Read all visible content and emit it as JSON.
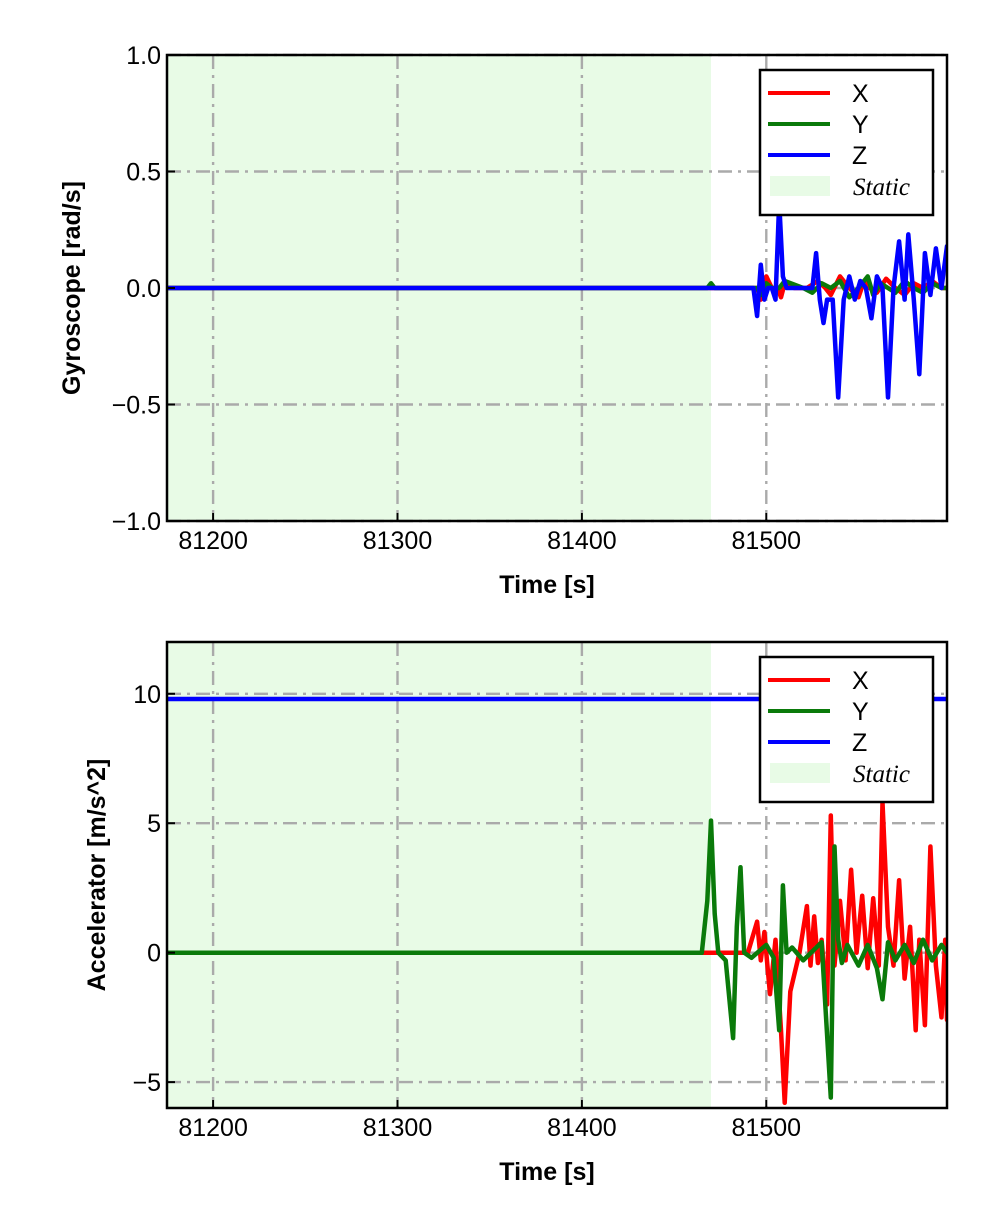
{
  "colors": {
    "x": "#ff0000",
    "y": "#0a7a0a",
    "z": "#0000ff",
    "static": "#e8fbe6",
    "grid": "#aaaaaa"
  },
  "chart_data": [
    {
      "type": "line",
      "xlabel": "Time [s]",
      "ylabel": "Gyroscope [rad/s]",
      "xlim": [
        81175,
        81598
      ],
      "ylim": [
        -1.0,
        1.0
      ],
      "xticks": [
        81200,
        81300,
        81400,
        81500
      ],
      "xtick_labels": [
        "81200",
        "81300",
        "81400",
        "81500"
      ],
      "yticks": [
        -1.0,
        -0.5,
        0.0,
        0.5,
        1.0
      ],
      "ytick_labels": [
        "−1.0",
        "−0.5",
        "0.0",
        "0.5",
        "1.0"
      ],
      "grid": true,
      "legend_position": "top-right",
      "static_region": {
        "label": "Static",
        "x_start": 81175,
        "x_end": 81470
      },
      "series": [
        {
          "name": "X",
          "color_key": "x",
          "x": [
            81175,
            81470,
            81495,
            81497,
            81500,
            81503,
            81506,
            81508,
            81510,
            81515,
            81522,
            81528,
            81532,
            81535,
            81540,
            81545,
            81550,
            81553,
            81556,
            81560,
            81565,
            81570,
            81575,
            81580,
            81585,
            81590,
            81595,
            81598
          ],
          "y": [
            0.0,
            0.0,
            0.0,
            -0.05,
            0.05,
            0.0,
            0.0,
            -0.04,
            0.02,
            0.0,
            0.0,
            0.03,
            0.0,
            -0.03,
            0.05,
            0.0,
            -0.04,
            0.03,
            0.0,
            -0.02,
            0.04,
            0.0,
            -0.03,
            0.02,
            0.0,
            0.03,
            0.0,
            0.0
          ]
        },
        {
          "name": "Y",
          "color_key": "y",
          "x": [
            81175,
            81468,
            81470,
            81472,
            81495,
            81497,
            81500,
            81503,
            81507,
            81510,
            81520,
            81525,
            81530,
            81535,
            81540,
            81545,
            81550,
            81555,
            81558,
            81562,
            81566,
            81570,
            81575,
            81580,
            81585,
            81590,
            81595,
            81598
          ],
          "y": [
            0.0,
            0.0,
            0.02,
            0.0,
            0.0,
            -0.03,
            0.02,
            0.0,
            0.0,
            0.03,
            0.0,
            -0.02,
            0.02,
            0.0,
            0.03,
            -0.04,
            0.0,
            0.05,
            -0.03,
            0.02,
            0.0,
            -0.02,
            0.03,
            0.0,
            -0.02,
            0.02,
            0.0,
            0.0
          ]
        },
        {
          "name": "Z",
          "color_key": "z",
          "x": [
            81175,
            81493,
            81495,
            81497,
            81499,
            81501,
            81503,
            81505,
            81507,
            81509,
            81511,
            81525,
            81527,
            81529,
            81531,
            81533,
            81536,
            81539,
            81542,
            81545,
            81548,
            81551,
            81554,
            81557,
            81560,
            81563,
            81566,
            81569,
            81572,
            81575,
            81577,
            81580,
            81583,
            81586,
            81589,
            81592,
            81595,
            81598
          ],
          "y": [
            0.0,
            0.0,
            -0.12,
            0.1,
            -0.05,
            0.0,
            0.0,
            -0.05,
            0.37,
            0.05,
            0.0,
            0.0,
            0.15,
            -0.05,
            -0.15,
            -0.05,
            -0.05,
            -0.47,
            -0.05,
            0.05,
            -0.05,
            0.03,
            0.0,
            -0.13,
            0.05,
            0.0,
            -0.47,
            0.0,
            0.2,
            -0.05,
            0.23,
            -0.05,
            -0.37,
            0.15,
            -0.03,
            0.17,
            0.0,
            0.18
          ]
        }
      ]
    },
    {
      "type": "line",
      "xlabel": "Time [s]",
      "ylabel": "Accelerator [m/s^2]",
      "xlim": [
        81175,
        81598
      ],
      "ylim": [
        -6.0,
        12.0
      ],
      "xticks": [
        81200,
        81300,
        81400,
        81500
      ],
      "xtick_labels": [
        "81200",
        "81300",
        "81400",
        "81500"
      ],
      "yticks": [
        -5,
        0,
        5,
        10
      ],
      "ytick_labels": [
        "−5",
        "0",
        "5",
        "10"
      ],
      "grid": true,
      "legend_position": "top-right",
      "static_region": {
        "label": "Static",
        "x_start": 81175,
        "x_end": 81470
      },
      "series": [
        {
          "name": "X",
          "color_key": "x",
          "x": [
            81175,
            81490,
            81495,
            81497,
            81499,
            81502,
            81505,
            81508,
            81510,
            81513,
            81518,
            81522,
            81524,
            81526,
            81528,
            81530,
            81533,
            81535,
            81537,
            81540,
            81543,
            81546,
            81549,
            81552,
            81555,
            81558,
            81561,
            81563,
            81566,
            81569,
            81572,
            81575,
            81578,
            81581,
            81583,
            81586,
            81589,
            81592,
            81595,
            81597,
            81598
          ],
          "y": [
            0.0,
            0.0,
            1.2,
            -0.3,
            0.8,
            -1.6,
            0.5,
            -3.0,
            -5.8,
            -1.5,
            0.0,
            1.8,
            -0.5,
            1.4,
            -0.4,
            0.5,
            -2.0,
            5.3,
            -0.5,
            2.0,
            -0.3,
            3.2,
            0.0,
            2.2,
            -0.6,
            2.1,
            -0.5,
            5.8,
            1.0,
            -0.5,
            2.8,
            -1.0,
            1.0,
            -3.0,
            0.5,
            -2.8,
            4.1,
            -0.5,
            -2.5,
            0.5,
            -2.6
          ]
        },
        {
          "name": "Y",
          "color_key": "y",
          "x": [
            81175,
            81465,
            81468,
            81470,
            81472,
            81474,
            81478,
            81482,
            81484,
            81486,
            81488,
            81492,
            81500,
            81504,
            81507,
            81509,
            81511,
            81514,
            81520,
            81530,
            81535,
            81537,
            81539,
            81541,
            81544,
            81550,
            81555,
            81560,
            81563,
            81566,
            81570,
            81575,
            81580,
            81585,
            81590,
            81595,
            81598
          ],
          "y": [
            0.0,
            0.0,
            2.0,
            5.1,
            1.5,
            0.0,
            -0.3,
            -3.3,
            1.0,
            3.3,
            0.0,
            -0.2,
            0.3,
            -0.2,
            -3.0,
            2.6,
            0.0,
            0.2,
            -0.3,
            0.4,
            -5.6,
            4.1,
            0.5,
            -0.4,
            0.3,
            -0.5,
            0.3,
            -0.6,
            -1.8,
            0.4,
            -0.3,
            0.3,
            -0.4,
            0.5,
            -0.3,
            0.3,
            0.0
          ]
        },
        {
          "name": "Z",
          "color_key": "z",
          "x": [
            81175,
            81598
          ],
          "y": [
            9.8,
            9.8
          ]
        }
      ]
    }
  ]
}
